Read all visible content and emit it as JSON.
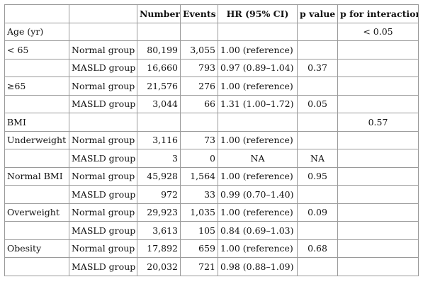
{
  "header": {
    "col0": "",
    "col1": "",
    "number": "Number",
    "events": "Events",
    "hr": "HR (95% CI)",
    "p_value": "p value",
    "p_interaction": "p for interaction"
  },
  "rows": [
    {
      "variable": "Age (yr)",
      "group": "",
      "number": "",
      "events": "",
      "hr": "",
      "p": "",
      "p_int": "< 0.05"
    },
    {
      "variable": "< 65",
      "group": "Normal group",
      "number": "80,199",
      "events": "3,055",
      "hr": "1.00 (reference)",
      "p": "",
      "p_int": ""
    },
    {
      "variable": "",
      "group": "MASLD group",
      "number": "16,660",
      "events": "793",
      "hr": "0.97 (0.89–1.04)",
      "p": "0.37",
      "p_int": ""
    },
    {
      "variable": "≥65",
      "group": "Normal group",
      "number": "21,576",
      "events": "276",
      "hr": "1.00 (reference)",
      "p": "",
      "p_int": ""
    },
    {
      "variable": "",
      "group": "MASLD group",
      "number": "3,044",
      "events": "66",
      "hr": "1.31 (1.00–1.72)",
      "p": "0.05",
      "p_int": ""
    },
    {
      "variable": "BMI",
      "group": "",
      "number": "",
      "events": "",
      "hr": "",
      "p": "",
      "p_int": "0.57"
    },
    {
      "variable": "Underweight",
      "group": "Normal group",
      "number": "3,116",
      "events": "73",
      "hr": "1.00 (reference)",
      "p": "",
      "p_int": ""
    },
    {
      "variable": "",
      "group": "MASLD group",
      "number": "3",
      "events": "0",
      "hr": "NA",
      "p": "NA",
      "p_int": ""
    },
    {
      "variable": "Normal BMI",
      "group": "Normal group",
      "number": "45,928",
      "events": "1,564",
      "hr": "1.00 (reference)",
      "p": "0.95",
      "p_int": ""
    },
    {
      "variable": "",
      "group": "MASLD group",
      "number": "972",
      "events": "33",
      "hr": "0.99 (0.70–1.40)",
      "p": "",
      "p_int": ""
    },
    {
      "variable": "Overweight",
      "group": "Normal group",
      "number": "29,923",
      "events": "1,035",
      "hr": "1.00 (reference)",
      "p": "0.09",
      "p_int": ""
    },
    {
      "variable": "",
      "group": "MASLD group",
      "number": "3,613",
      "events": "105",
      "hr": "0.84 (0.69–1.03)",
      "p": "",
      "p_int": ""
    },
    {
      "variable": "Obesity",
      "group": "Normal group",
      "number": "17,892",
      "events": "659",
      "hr": "1.00 (reference)",
      "p": "0.68",
      "p_int": ""
    },
    {
      "variable": "",
      "group": "MASLD group",
      "number": "20,032",
      "events": "721",
      "hr": "0.98 (0.88–1.09)",
      "p": "",
      "p_int": ""
    }
  ]
}
